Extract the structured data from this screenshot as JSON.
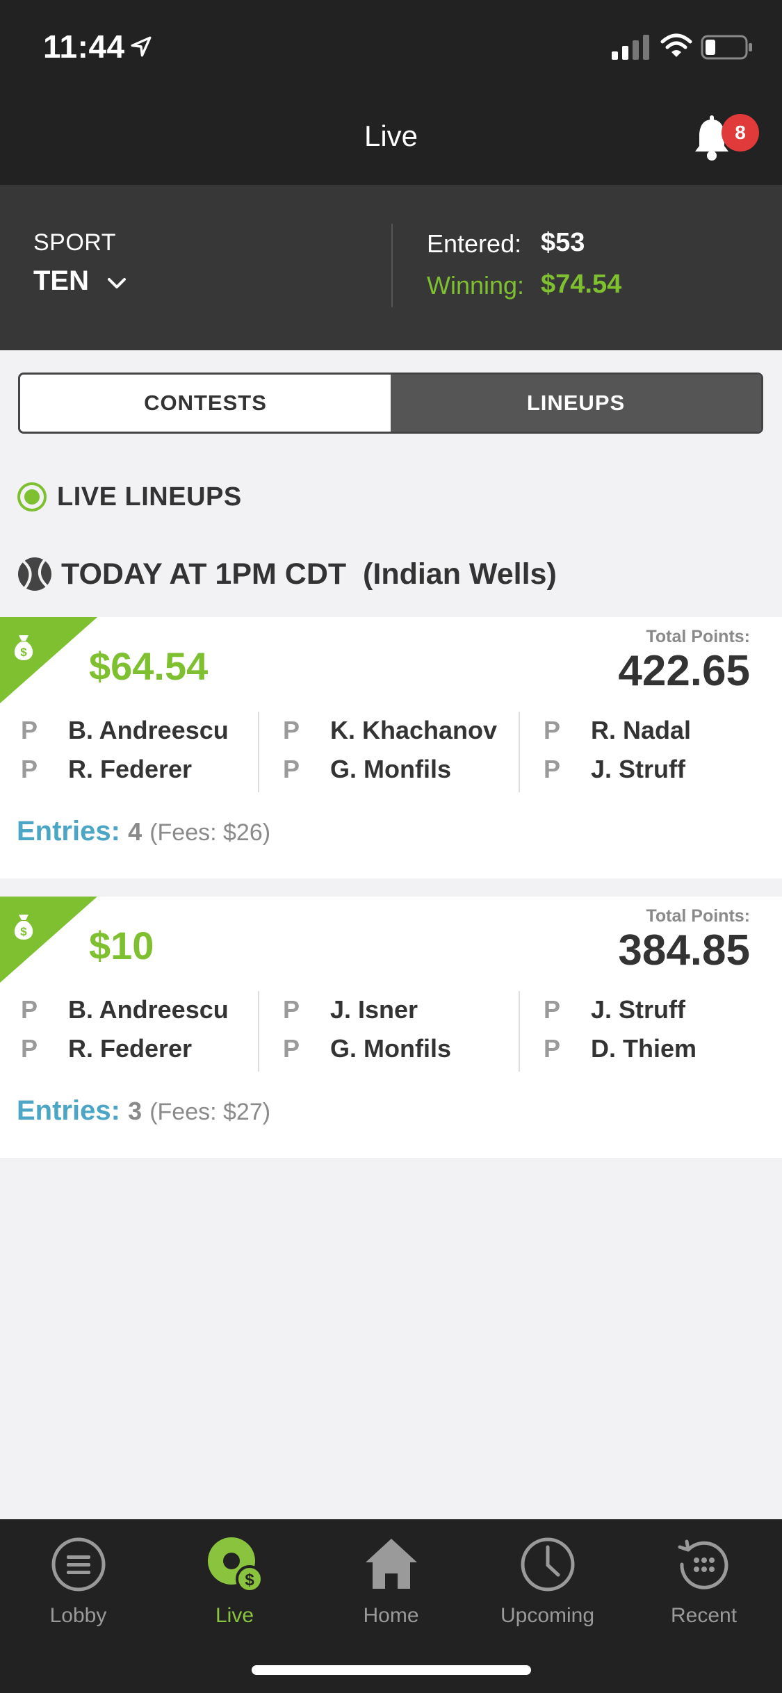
{
  "status_bar": {
    "time": "11:44"
  },
  "header": {
    "title": "Live",
    "notifications_count": "8"
  },
  "summary": {
    "sport_label": "SPORT",
    "sport_value": "TEN",
    "entered_label": "Entered:",
    "entered_value": "$53",
    "winning_label": "Winning:",
    "winning_value": "$74.54"
  },
  "tabs": {
    "contests": "CONTESTS",
    "lineups": "LINEUPS",
    "selected": "LINEUPS"
  },
  "section_title": "LIVE LINEUPS",
  "event_title": "TODAY AT 1PM CDT  (Indian Wells)",
  "lineups": [
    {
      "winnings": "$64.54",
      "total_points_label": "Total Points:",
      "total_points": "422.65",
      "players": [
        {
          "pos": "P",
          "name": "B. Andreescu"
        },
        {
          "pos": "P",
          "name": "R. Federer"
        },
        {
          "pos": "P",
          "name": "K. Khachanov"
        },
        {
          "pos": "P",
          "name": "G. Monfils"
        },
        {
          "pos": "P",
          "name": "R. Nadal"
        },
        {
          "pos": "P",
          "name": "J. Struff"
        }
      ],
      "entries_label": "Entries:",
      "entries_count": "4",
      "fees": "(Fees: $26)"
    },
    {
      "winnings": "$10",
      "total_points_label": "Total Points:",
      "total_points": "384.85",
      "players": [
        {
          "pos": "P",
          "name": "B. Andreescu"
        },
        {
          "pos": "P",
          "name": "R. Federer"
        },
        {
          "pos": "P",
          "name": "J. Isner"
        },
        {
          "pos": "P",
          "name": "G. Monfils"
        },
        {
          "pos": "P",
          "name": "J. Struff"
        },
        {
          "pos": "P",
          "name": "D. Thiem"
        }
      ],
      "entries_label": "Entries:",
      "entries_count": "3",
      "fees": "(Fees: $27)"
    }
  ],
  "tab_bar": [
    {
      "label": "Lobby",
      "icon": "lobby-icon"
    },
    {
      "label": "Live",
      "icon": "live-icon",
      "active": true
    },
    {
      "label": "Home",
      "icon": "home-icon"
    },
    {
      "label": "Upcoming",
      "icon": "clock-icon"
    },
    {
      "label": "Recent",
      "icon": "recent-icon"
    }
  ],
  "colors": {
    "accent_green": "#7fc031",
    "entries_blue": "#4aa6c4",
    "badge_red": "#e03a3a",
    "dark_bg": "#222222"
  }
}
